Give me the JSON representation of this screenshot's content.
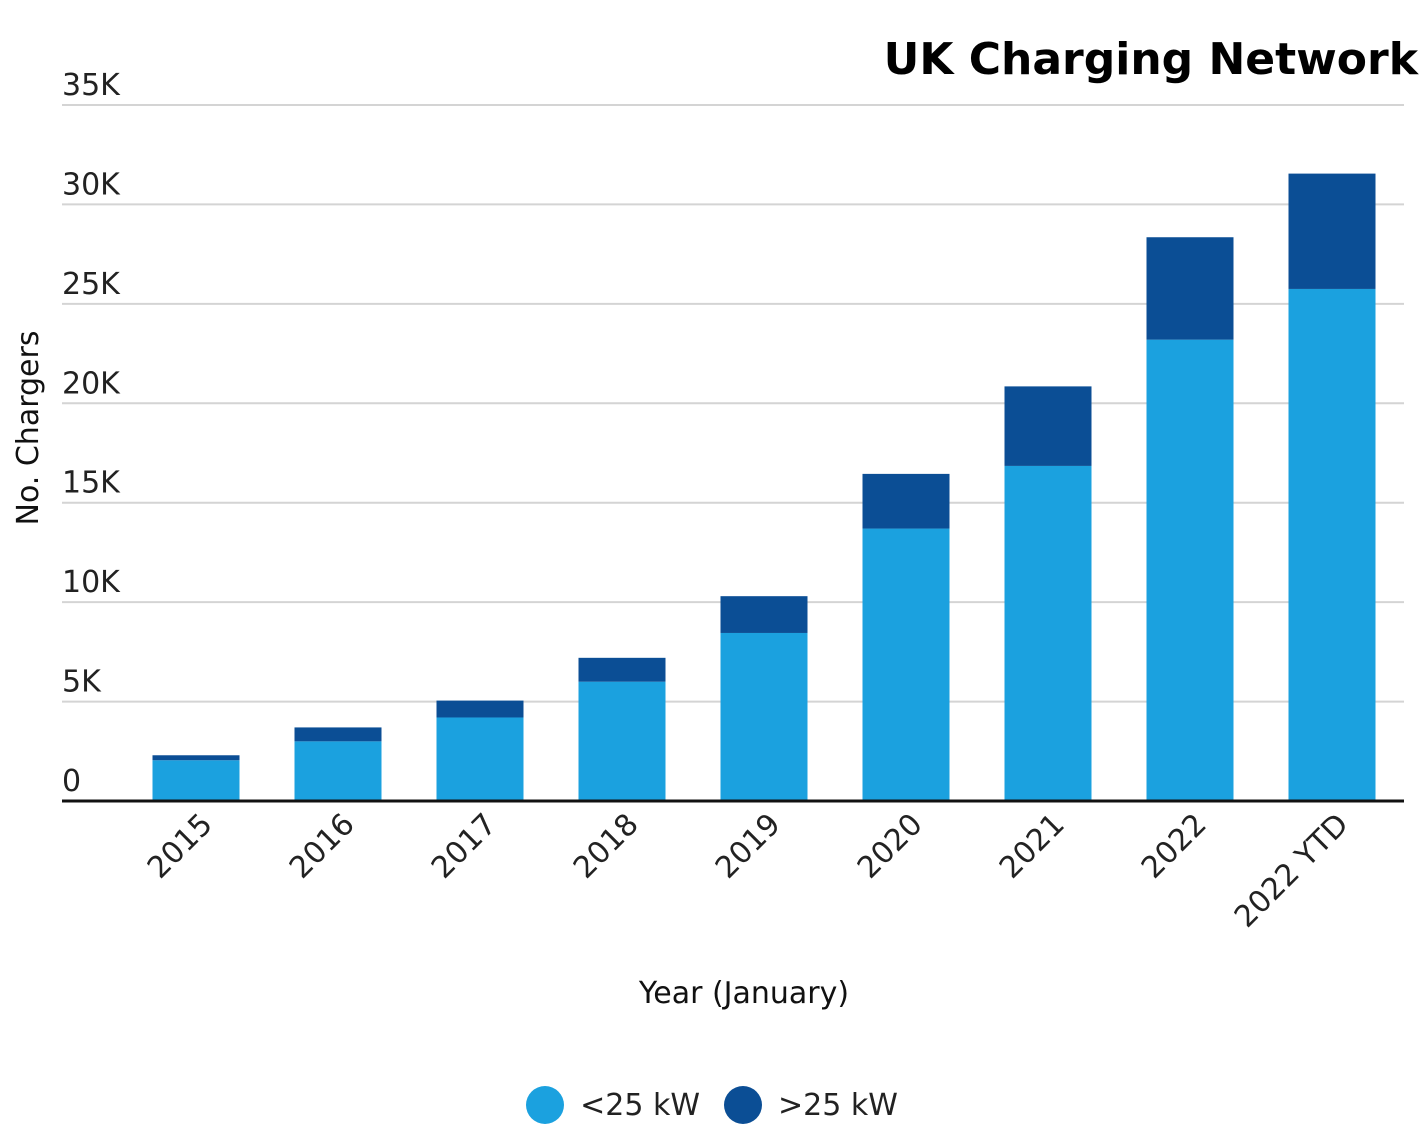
{
  "chart_data": {
    "type": "bar",
    "stacked": true,
    "title": "UK Charging Network",
    "xlabel": "Year (January)",
    "ylabel": "No. Chargers",
    "ylim": [
      0,
      35000
    ],
    "yticks": [
      0,
      5000,
      10000,
      15000,
      20000,
      25000,
      30000,
      35000
    ],
    "ytick_labels": [
      "0",
      "5K",
      "10K",
      "15K",
      "20K",
      "25K",
      "30K",
      "35K"
    ],
    "grid": true,
    "legend_position": "bottom-center",
    "categories": [
      "2015",
      "2016",
      "2017",
      "2018",
      "2019",
      "2020",
      "2021",
      "2022",
      "2022 YTD"
    ],
    "series": [
      {
        "name": "<25 kW",
        "color": "#1ba1df",
        "values": [
          2050,
          3000,
          4200,
          6000,
          8450,
          13700,
          16850,
          23200,
          25750
        ]
      },
      {
        "name": ">25 kW",
        "color": "#0b4e95",
        "values": [
          250,
          700,
          850,
          1200,
          1850,
          2750,
          4000,
          5150,
          5800
        ]
      }
    ]
  }
}
